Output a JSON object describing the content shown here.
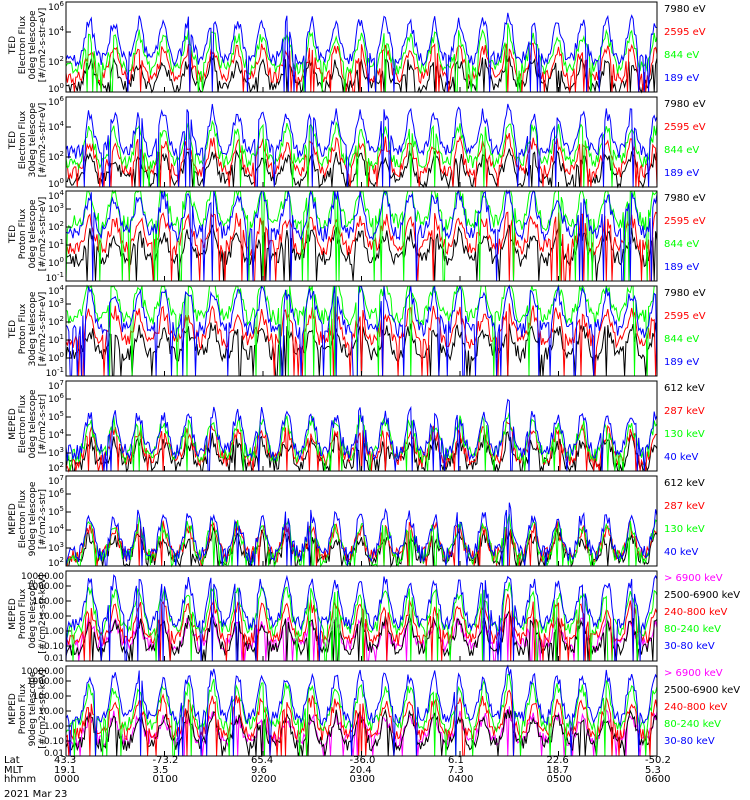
{
  "chart_data": [
    {
      "type": "line",
      "ylabel": [
        "TED",
        "Electron Flux",
        "0deg telescope",
        "[#/cm2-s-str-eV]"
      ],
      "yscale": "log",
      "ylim": [
        1,
        1000000
      ],
      "yticks": [
        "10^6",
        "10^4",
        "10^2",
        "10^0"
      ],
      "series": [
        {
          "name": "7980 eV",
          "color": "#000000",
          "baseline": 0.3
        },
        {
          "name": "2595 eV",
          "color": "#ff0000",
          "baseline": 0.9
        },
        {
          "name": "844 eV",
          "color": "#00ff00",
          "baseline": 1.5
        },
        {
          "name": "189 eV",
          "color": "#0000ff",
          "baseline": 2.1
        }
      ]
    },
    {
      "type": "line",
      "ylabel": [
        "TED",
        "Electron Flux",
        "30deg telescope",
        "[#/cm2-s-str-eV]"
      ],
      "yscale": "log",
      "ylim": [
        1,
        1000000
      ],
      "yticks": [
        "10^6",
        "10^4",
        "10^2",
        "10^0"
      ],
      "series": [
        {
          "name": "7980 eV",
          "color": "#000000",
          "baseline": 0.4
        },
        {
          "name": "2595 eV",
          "color": "#ff0000",
          "baseline": 1.0
        },
        {
          "name": "844 eV",
          "color": "#00ff00",
          "baseline": 1.6
        },
        {
          "name": "189 eV",
          "color": "#0000ff",
          "baseline": 2.3
        }
      ]
    },
    {
      "type": "line",
      "ylabel": [
        "TED",
        "Proton Flux",
        "0deg telescope",
        "[#/cm2-s-str-eV]"
      ],
      "yscale": "log",
      "ylim": [
        0.1,
        10000
      ],
      "yticks": [
        "10^4",
        "10^3",
        "10^2",
        "10^1",
        "10^0",
        "10^-1"
      ],
      "series": [
        {
          "name": "7980 eV",
          "color": "#000000",
          "baseline": 0.2
        },
        {
          "name": "2595 eV",
          "color": "#ff0000",
          "baseline": 0.8
        },
        {
          "name": "844 eV",
          "color": "#00ff00",
          "baseline": 2.2
        },
        {
          "name": "189 eV",
          "color": "#0000ff",
          "baseline": 1.6
        }
      ]
    },
    {
      "type": "line",
      "ylabel": [
        "TED",
        "Proton Flux",
        "30deg telescope",
        "[#/cm2-s-str-eV]"
      ],
      "yscale": "log",
      "ylim": [
        0.1,
        10000
      ],
      "yticks": [
        "10^4",
        "10^3",
        "10^2",
        "10^1",
        "10^0",
        "10^-1"
      ],
      "series": [
        {
          "name": "7980 eV",
          "color": "#000000",
          "baseline": 0.2
        },
        {
          "name": "2595 eV",
          "color": "#ff0000",
          "baseline": 0.9
        },
        {
          "name": "844 eV",
          "color": "#00ff00",
          "baseline": 2.2
        },
        {
          "name": "189 eV",
          "color": "#0000ff",
          "baseline": 1.5
        }
      ]
    },
    {
      "type": "line",
      "ylabel": [
        "MEPED",
        "Electron Flux",
        "0deg telescope",
        "[#/cm2-s-str]"
      ],
      "yscale": "log",
      "ylim": [
        100,
        10000000
      ],
      "yticks": [
        "10^7",
        "10^6",
        "10^5",
        "10^4",
        "10^3",
        "10^2"
      ],
      "series": [
        {
          "name": "612 keV",
          "color": "#000000",
          "baseline": 2.3
        },
        {
          "name": "287 keV",
          "color": "#ff0000",
          "baseline": 2.6
        },
        {
          "name": "130 keV",
          "color": "#00ff00",
          "baseline": 2.8
        },
        {
          "name": "40 keV",
          "color": "#0000ff",
          "baseline": 3.0
        }
      ]
    },
    {
      "type": "line",
      "ylabel": [
        "MEPED",
        "Electron Flux",
        "90deg telescope",
        "[#/cm2-s-str]"
      ],
      "yscale": "log",
      "ylim": [
        100,
        10000000
      ],
      "yticks": [
        "10^7",
        "10^6",
        "10^5",
        "10^4",
        "10^3",
        "10^2"
      ],
      "series": [
        {
          "name": "612 keV",
          "color": "#000000",
          "baseline": 2.3
        },
        {
          "name": "287 keV",
          "color": "#ff0000",
          "baseline": 2.5
        },
        {
          "name": "130 keV",
          "color": "#00ff00",
          "baseline": 2.4
        },
        {
          "name": "40 keV",
          "color": "#0000ff",
          "baseline": 2.6
        }
      ]
    },
    {
      "type": "line",
      "ylabel": [
        "MEPED",
        "Proton Flux",
        "0deg telescope",
        "[#/cm2-s-str-keV]"
      ],
      "yscale": "log",
      "ylim": [
        0.01,
        10000
      ],
      "yticks": [
        "10000.00",
        "1000.00",
        "100.00",
        "10.00",
        "1.00",
        "0.10",
        "0.01"
      ],
      "series": [
        {
          "name": "> 6900 keV",
          "color": "#ff00ff",
          "baseline": -1.0
        },
        {
          "name": "2500-6900 keV",
          "color": "#000000",
          "baseline": -1.3
        },
        {
          "name": "240-800 keV",
          "color": "#ff0000",
          "baseline": -0.6
        },
        {
          "name": "80-240 keV",
          "color": "#00ff00",
          "baseline": 0.0
        },
        {
          "name": "30-80 keV",
          "color": "#0000ff",
          "baseline": 0.4
        }
      ]
    },
    {
      "type": "line",
      "ylabel": [
        "MEPED",
        "Proton Flux",
        "90deg telescope",
        "[#/cm2-s-str-keV]"
      ],
      "yscale": "log",
      "ylim": [
        0.01,
        10000
      ],
      "yticks": [
        "10000.00",
        "1000.00",
        "100.00",
        "10.00",
        "1.00",
        "0.10",
        "0.01"
      ],
      "series": [
        {
          "name": "> 6900 keV",
          "color": "#ff00ff",
          "baseline": -1.0
        },
        {
          "name": "2500-6900 keV",
          "color": "#000000",
          "baseline": -1.3
        },
        {
          "name": "240-800 keV",
          "color": "#ff0000",
          "baseline": -0.6
        },
        {
          "name": "80-240 keV",
          "color": "#00ff00",
          "baseline": 0.0
        },
        {
          "name": "30-80 keV",
          "color": "#0000ff",
          "baseline": 0.4
        }
      ]
    }
  ],
  "x_axis": {
    "row_labels": [
      "Lat",
      "MLT",
      "hhmm"
    ],
    "ticks": [
      {
        "lat": "43.3",
        "mlt": "19.1",
        "hhmm": "0000"
      },
      {
        "lat": "-73.2",
        "mlt": "3.5",
        "hhmm": "0100"
      },
      {
        "lat": "65.4",
        "mlt": "9.6",
        "hhmm": "0200"
      },
      {
        "lat": "-36.0",
        "mlt": "20.4",
        "hhmm": "0300"
      },
      {
        "lat": "6.1",
        "mlt": "7.3",
        "hhmm": "0400"
      },
      {
        "lat": "22.6",
        "mlt": "18.7",
        "hhmm": "0500"
      },
      {
        "lat": "-50.2",
        "mlt": "5.3",
        "hhmm": "0600"
      }
    ],
    "date": "2021 Mar 23"
  },
  "passes": [
    {
      "center": 0.24,
      "strength": 1.0
    },
    {
      "center": 0.49,
      "strength": 1.0
    },
    {
      "center": 0.74,
      "strength": 1.0
    },
    {
      "center": 0.99,
      "strength": 1.0
    },
    {
      "center": 1.24,
      "strength": 1.0
    },
    {
      "center": 1.49,
      "strength": 1.1
    },
    {
      "center": 1.74,
      "strength": 1.0
    },
    {
      "center": 1.99,
      "strength": 1.0
    },
    {
      "center": 2.24,
      "strength": 1.0
    },
    {
      "center": 2.49,
      "strength": 1.0
    },
    {
      "center": 2.74,
      "strength": 1.0
    },
    {
      "center": 2.99,
      "strength": 1.0
    },
    {
      "center": 3.24,
      "strength": 1.0
    },
    {
      "center": 3.49,
      "strength": 1.0
    },
    {
      "center": 3.74,
      "strength": 1.0
    },
    {
      "center": 3.99,
      "strength": 1.0
    },
    {
      "center": 4.24,
      "strength": 1.0
    },
    {
      "center": 4.49,
      "strength": 1.2
    },
    {
      "center": 4.74,
      "strength": 1.0
    },
    {
      "center": 4.99,
      "strength": 1.0
    },
    {
      "center": 5.24,
      "strength": 1.0
    },
    {
      "center": 5.49,
      "strength": 1.0
    },
    {
      "center": 5.74,
      "strength": 1.0
    },
    {
      "center": 5.99,
      "strength": 1.0
    }
  ]
}
